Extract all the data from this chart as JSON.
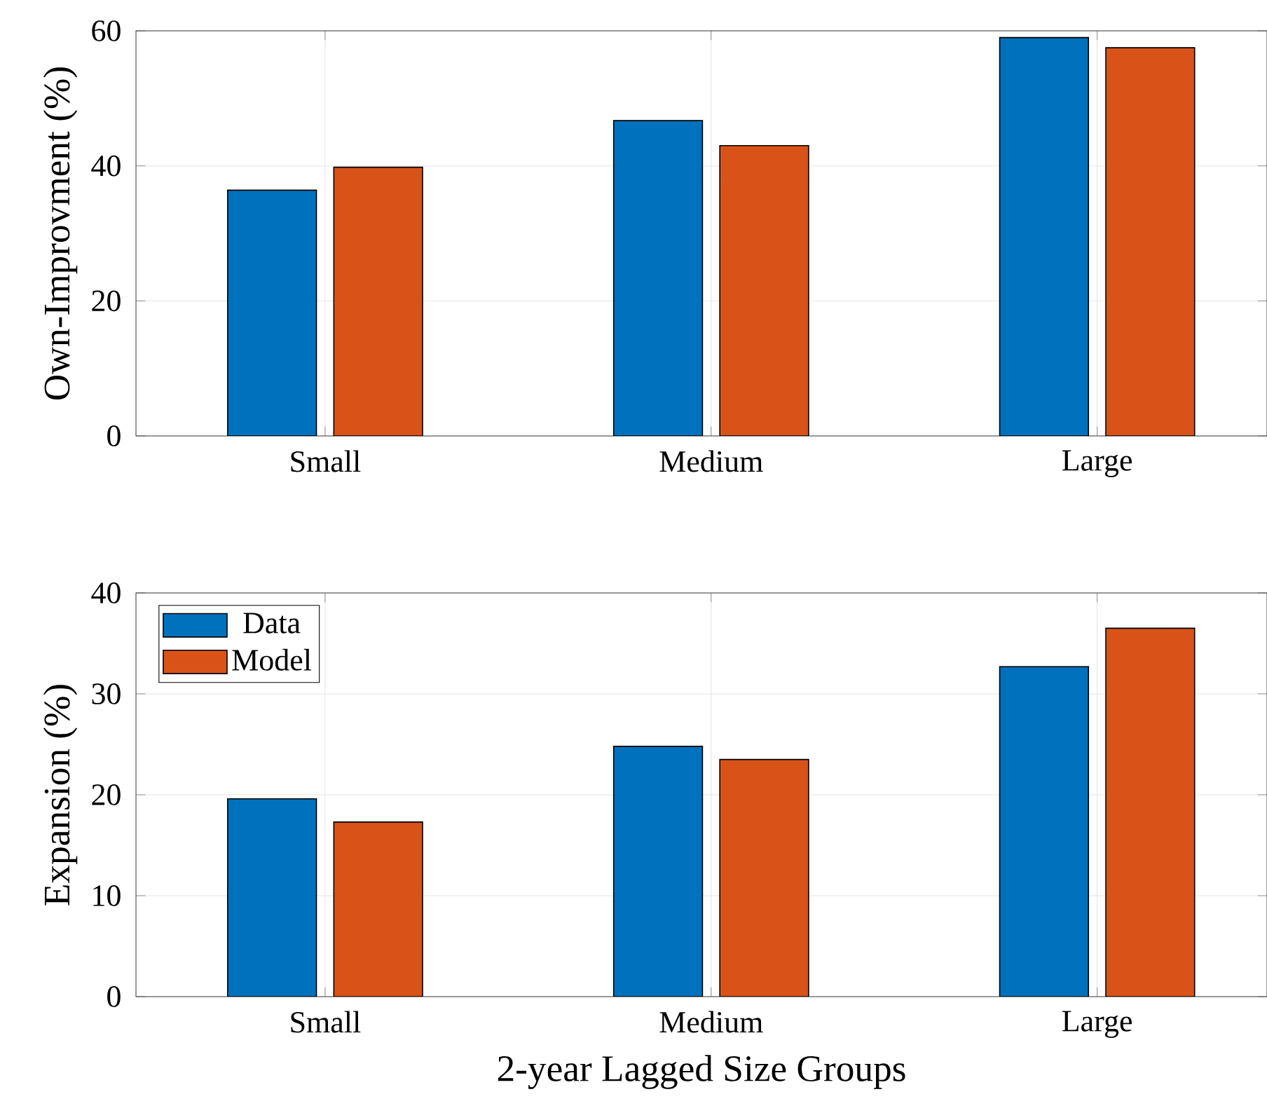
{
  "chart_data": [
    {
      "type": "bar",
      "ylabel": "Own-Improvment (%)",
      "categories": [
        "Small",
        "Medium",
        "Large"
      ],
      "ylim": [
        0,
        60
      ],
      "yticks": [
        0,
        20,
        40,
        60
      ],
      "grid": true,
      "series": [
        {
          "color": "#0072bd",
          "values": [
            36.4,
            46.7,
            59.0
          ]
        },
        {
          "color": "#d95319",
          "values": [
            39.8,
            43.0,
            57.5
          ]
        }
      ]
    },
    {
      "type": "bar",
      "ylabel": "Expansion (%)",
      "xlabel": "2-year Lagged Size Groups",
      "categories": [
        "Small",
        "Medium",
        "Large"
      ],
      "ylim": [
        0,
        40
      ],
      "yticks": [
        0,
        10,
        20,
        30,
        40
      ],
      "grid": true,
      "legend": "top left",
      "series": [
        {
          "name": "Data",
          "color": "#0072bd",
          "values": [
            19.6,
            24.8,
            32.7
          ]
        },
        {
          "name": "Model",
          "color": "#d95319",
          "values": [
            17.3,
            23.5,
            36.5
          ]
        }
      ]
    }
  ]
}
